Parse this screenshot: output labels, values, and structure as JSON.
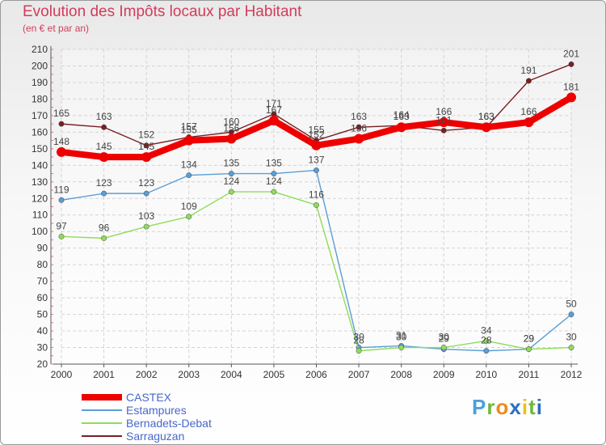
{
  "chart_data": {
    "type": "line",
    "title": "Evolution des Impôts locaux par Habitant",
    "subtitle": "(en € et par an)",
    "xlabel": "",
    "ylabel": "",
    "ylim": [
      20,
      210
    ],
    "yticks": [
      20,
      30,
      40,
      50,
      60,
      70,
      80,
      90,
      100,
      110,
      120,
      130,
      140,
      150,
      160,
      170,
      180,
      190,
      200,
      210
    ],
    "grid": true,
    "legend_position": "bottom-left",
    "x": [
      "2000",
      "2001",
      "2002",
      "2003",
      "2004",
      "2005",
      "2006",
      "2007",
      "2008",
      "2009",
      "2010",
      "2011",
      "2012"
    ],
    "series": [
      {
        "name": "Sarraguzan",
        "color": "#7a1e22",
        "values": [
          165,
          163,
          152,
          157,
          160,
          171,
          155,
          163,
          164,
          161,
          163,
          191,
          201
        ]
      },
      {
        "name": "Estampures",
        "color": "#5a9ed6",
        "values": [
          119,
          123,
          123,
          134,
          135,
          135,
          137,
          30,
          31,
          29,
          28,
          29,
          50
        ]
      },
      {
        "name": "Bernadets-Debat",
        "color": "#8fdc5a",
        "values": [
          97,
          96,
          103,
          109,
          124,
          124,
          116,
          28,
          30,
          30,
          34,
          29,
          30
        ]
      },
      {
        "name": "CASTEX",
        "color": "#ee0000",
        "values": [
          148,
          145,
          145,
          155,
          156,
          167,
          152,
          156,
          163,
          166,
          163,
          166,
          181
        ]
      }
    ]
  },
  "legend": {
    "items": [
      {
        "label": "CASTEX",
        "color": "#ee0000"
      },
      {
        "label": "Estampures",
        "color": "#5a9ed6"
      },
      {
        "label": "Bernadets-Debat",
        "color": "#8fdc5a"
      },
      {
        "label": "Sarraguzan",
        "color": "#7a1e22"
      }
    ]
  },
  "brand": {
    "letters": [
      "P",
      "r",
      "o",
      "x",
      "i",
      "t",
      "i"
    ],
    "colors": [
      "#4aa0dc",
      "#6fb83a",
      "#f08a1c",
      "#2a6fc0",
      "#e8c21a",
      "#6fb83a",
      "#2a6fc0"
    ]
  }
}
